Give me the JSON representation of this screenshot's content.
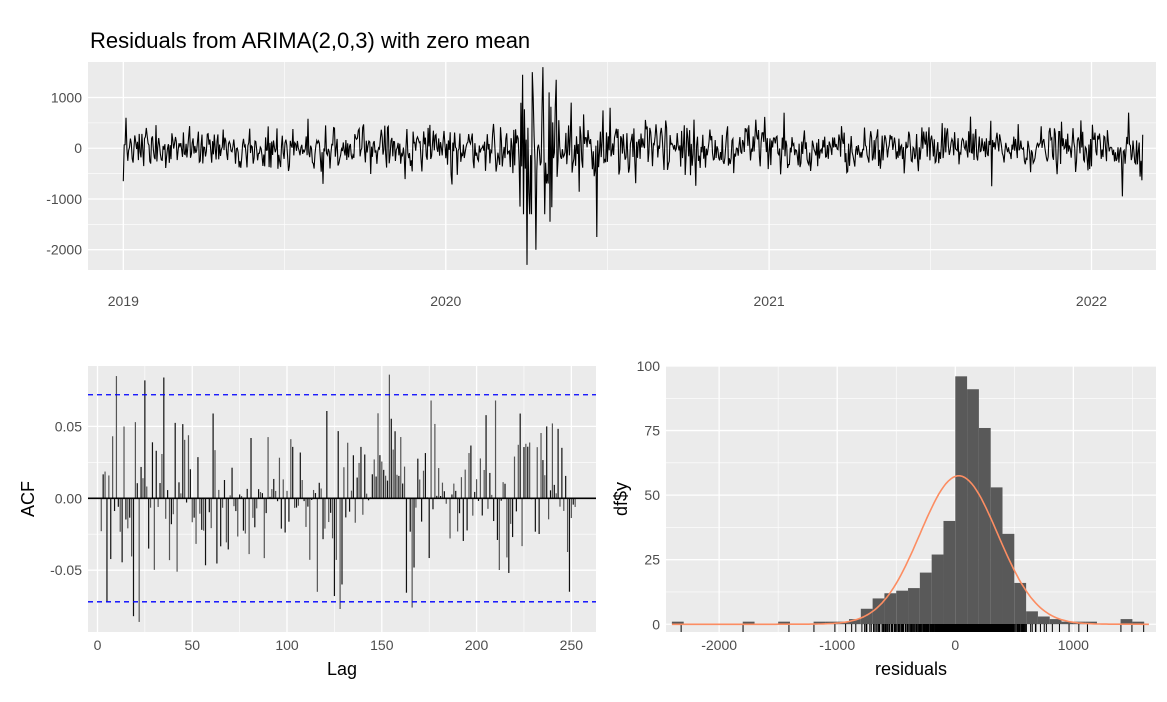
{
  "title": "Residuals from ARIMA(2,0,3) with zero mean",
  "chart_data": [
    {
      "type": "line",
      "panel": "residuals-over-time",
      "x_start": "2019-01-01",
      "x_end": "2022-02-28",
      "xticks": [
        2019,
        2020,
        2021,
        2022
      ],
      "yticks": [
        1000,
        0,
        -1000,
        -2000
      ],
      "ylim": [
        -2400,
        1700
      ],
      "grid": true,
      "features": [
        {
          "date": "2019-01-01",
          "value": -650
        },
        {
          "date": "2019-01-04",
          "value": 600
        },
        {
          "date": "2019-08-15",
          "value": -700
        },
        {
          "date": "2020-03-25",
          "value": -1150
        },
        {
          "date": "2020-03-28",
          "value": 1450
        },
        {
          "date": "2020-04-02",
          "value": -2300
        },
        {
          "date": "2020-04-08",
          "value": 1500
        },
        {
          "date": "2020-04-12",
          "value": -2000
        },
        {
          "date": "2020-04-20",
          "value": 1600
        },
        {
          "date": "2020-04-28",
          "value": -1450
        },
        {
          "date": "2020-05-05",
          "value": 1350
        },
        {
          "date": "2020-05-22",
          "value": 900
        },
        {
          "date": "2020-06-20",
          "value": -1750
        },
        {
          "date": "2020-07-05",
          "value": 800
        },
        {
          "date": "2021-01-18",
          "value": 700
        },
        {
          "date": "2021-09-10",
          "value": -750
        },
        {
          "date": "2022-02-05",
          "value": -950
        },
        {
          "date": "2022-02-12",
          "value": 700
        }
      ]
    },
    {
      "type": "bar",
      "panel": "acf",
      "xlabel": "Lag",
      "ylabel": "ACF",
      "xticks": [
        0,
        50,
        100,
        150,
        200,
        250
      ],
      "yticks": [
        0.05,
        0.0,
        -0.05
      ],
      "ytick_labels": [
        "0.05",
        "0.00",
        "-0.05"
      ],
      "xlim": [
        -5,
        263
      ],
      "ylim": [
        -0.093,
        0.092
      ],
      "confidence_bound": 0.072,
      "lags_max": 252,
      "features": [
        {
          "lag": 5,
          "value": -0.072
        },
        {
          "lag": 10,
          "value": 0.085
        },
        {
          "lag": 19,
          "value": -0.082
        },
        {
          "lag": 22,
          "value": -0.086
        },
        {
          "lag": 25,
          "value": 0.082
        },
        {
          "lag": 35,
          "value": 0.084
        },
        {
          "lag": 128,
          "value": -0.077
        },
        {
          "lag": 154,
          "value": 0.086
        },
        {
          "lag": 166,
          "value": -0.076
        },
        {
          "lag": 249,
          "value": -0.065
        }
      ]
    },
    {
      "type": "bar",
      "panel": "histogram",
      "xlabel": "residuals",
      "ylabel": "df$y",
      "xticks": [
        -2000,
        -1000,
        0,
        1000
      ],
      "yticks": [
        0,
        25,
        50,
        75,
        100
      ],
      "xlim": [
        -2450,
        1700
      ],
      "ylim": [
        -3,
        100
      ],
      "bin_width": 100,
      "bins": [
        {
          "center": -2350,
          "count": 1
        },
        {
          "center": -1750,
          "count": 1
        },
        {
          "center": -1450,
          "count": 1
        },
        {
          "center": -1150,
          "count": 1
        },
        {
          "center": -1050,
          "count": 1
        },
        {
          "center": -950,
          "count": 1
        },
        {
          "center": -850,
          "count": 2
        },
        {
          "center": -750,
          "count": 6
        },
        {
          "center": -650,
          "count": 10
        },
        {
          "center": -550,
          "count": 12
        },
        {
          "center": -450,
          "count": 13
        },
        {
          "center": -350,
          "count": 14
        },
        {
          "center": -250,
          "count": 20
        },
        {
          "center": -150,
          "count": 27
        },
        {
          "center": -50,
          "count": 40
        },
        {
          "center": 50,
          "count": 96
        },
        {
          "center": 150,
          "count": 91
        },
        {
          "center": 250,
          "count": 76
        },
        {
          "center": 350,
          "count": 53
        },
        {
          "center": 450,
          "count": 35
        },
        {
          "center": 550,
          "count": 16
        },
        {
          "center": 650,
          "count": 5
        },
        {
          "center": 750,
          "count": 3
        },
        {
          "center": 850,
          "count": 2
        },
        {
          "center": 950,
          "count": 1
        },
        {
          "center": 1050,
          "count": 1
        },
        {
          "center": 1150,
          "count": 1
        },
        {
          "center": 1450,
          "count": 2
        },
        {
          "center": 1550,
          "count": 1
        }
      ],
      "normal_curve": {
        "mean": 30,
        "sd": 330,
        "peak": 57.5,
        "color": "#fc8d62"
      }
    }
  ],
  "colors": {
    "panel_bg": "#ebebeb",
    "grid": "#ffffff",
    "line": "#000000",
    "bars": "#595959",
    "bound": "#0000ff",
    "tick_text": "#4d4d4d"
  }
}
